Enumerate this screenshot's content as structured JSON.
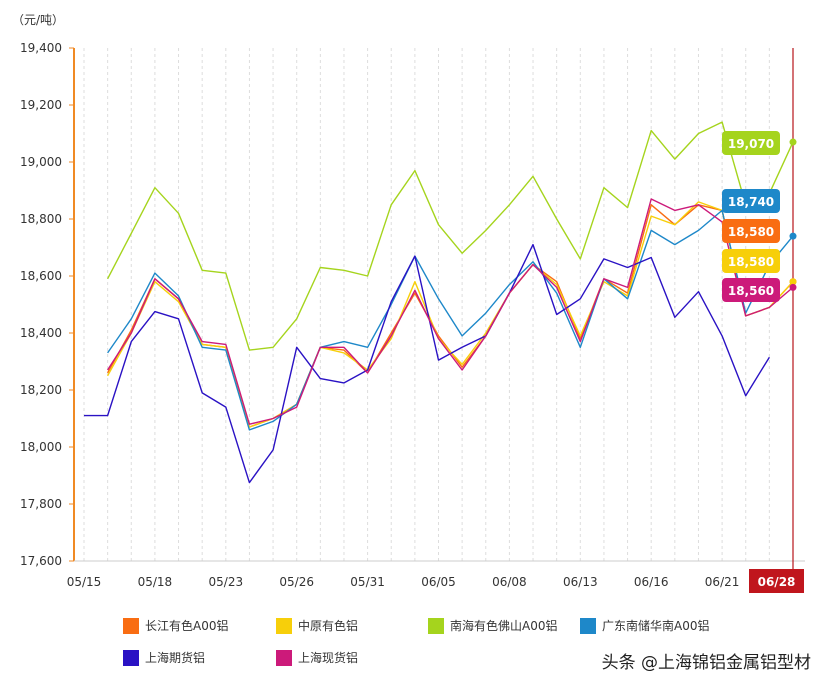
{
  "chart_data": {
    "type": "line",
    "unit_label": "（元/吨）",
    "ylim": [
      17600,
      19400
    ],
    "y_ticks": [
      17600,
      17800,
      18000,
      18200,
      18400,
      18600,
      18800,
      19000,
      19200,
      19400
    ],
    "y_tick_labels": [
      "17,600",
      "17,800",
      "18,000",
      "18,200",
      "18,400",
      "18,600",
      "18,800",
      "19,000",
      "19,200",
      "19,400"
    ],
    "x_tick_labels": [
      "05/15",
      "05/18",
      "05/23",
      "05/26",
      "05/31",
      "06/05",
      "06/08",
      "06/13",
      "06/16",
      "06/21",
      "06/28"
    ],
    "x_tick_index": [
      0,
      3,
      6,
      9,
      12,
      15,
      18,
      21,
      24,
      27,
      30
    ],
    "highlight_index": 30,
    "highlight_label": "06/28",
    "legend_position": "bottom",
    "grid": "vertical dashed",
    "series": [
      {
        "name": "长江有色A00铝",
        "color": "#f96d12",
        "values": [
          null,
          18260,
          18410,
          18590,
          18520,
          18360,
          18350,
          18070,
          18100,
          18150,
          18350,
          18340,
          18260,
          18400,
          18540,
          18390,
          18280,
          18390,
          18540,
          18640,
          18580,
          18380,
          18590,
          18540,
          18850,
          18780,
          18850,
          18830,
          18460,
          18490,
          18580
        ],
        "last_label": "18,580"
      },
      {
        "name": "中原有色铝",
        "color": "#f7cf0a",
        "values": [
          null,
          18250,
          18400,
          18580,
          18510,
          18360,
          18350,
          18070,
          18100,
          18150,
          18350,
          18330,
          18270,
          18380,
          18580,
          18380,
          18290,
          18400,
          18540,
          18640,
          18570,
          18390,
          18580,
          18530,
          18810,
          18780,
          18860,
          18830,
          18460,
          18490,
          18580
        ],
        "last_label": "18,580"
      },
      {
        "name": "南海有色佛山A00铝",
        "color": "#a5d41d",
        "values": [
          null,
          18590,
          18750,
          18910,
          18820,
          18620,
          18610,
          18340,
          18350,
          18450,
          18630,
          18620,
          18600,
          18850,
          18970,
          18780,
          18680,
          18760,
          18850,
          18950,
          18800,
          18660,
          18910,
          18840,
          19110,
          19010,
          19100,
          19140,
          18850,
          18890,
          19070
        ],
        "last_label": "19,070"
      },
      {
        "name": "广东南储华南A00铝",
        "color": "#1e88c9",
        "values": [
          null,
          18330,
          18450,
          18610,
          18530,
          18350,
          18340,
          18060,
          18090,
          18150,
          18350,
          18370,
          18350,
          18500,
          18670,
          18520,
          18390,
          18470,
          18570,
          18650,
          18540,
          18350,
          18590,
          18520,
          18760,
          18710,
          18760,
          18830,
          18470,
          18640,
          18740
        ],
        "last_label": "18,740"
      },
      {
        "name": "上海期货铝",
        "color": "#2a12c4",
        "values": [
          18110,
          18110,
          18370,
          18475,
          18450,
          18190,
          18140,
          17875,
          17990,
          18350,
          18240,
          18225,
          18270,
          18510,
          18670,
          18305,
          18350,
          18390,
          18540,
          18710,
          18465,
          18520,
          18660,
          18630,
          18665,
          18455,
          18545,
          18390,
          18180,
          18315,
          null
        ],
        "last_label": ""
      },
      {
        "name": "上海现货铝",
        "color": "#cc1a7a",
        "values": [
          null,
          18270,
          18400,
          18590,
          18520,
          18370,
          18360,
          18080,
          18100,
          18140,
          18350,
          18350,
          18260,
          18390,
          18550,
          18380,
          18270,
          18390,
          18540,
          18640,
          18560,
          18370,
          18590,
          18560,
          18870,
          18830,
          18850,
          18790,
          18460,
          18490,
          18560
        ],
        "last_label": "18,560"
      }
    ]
  },
  "watermark": "头条 @上海锦铝金属铝型材"
}
